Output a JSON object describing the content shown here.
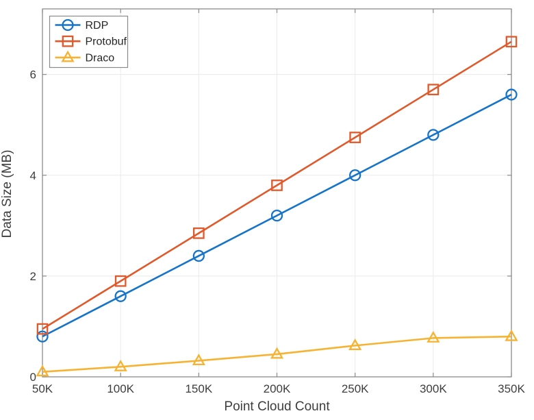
{
  "chart_data": {
    "type": "line",
    "title": "",
    "xlabel": "Point Cloud Count",
    "ylabel": "Data Size (MB)",
    "x": [
      50,
      100,
      150,
      200,
      250,
      300,
      350
    ],
    "x_tick_labels": [
      "50K",
      "100K",
      "150K",
      "200K",
      "250K",
      "300K",
      "350K"
    ],
    "xlim": [
      50,
      350
    ],
    "y_ticks": [
      0,
      2,
      4,
      6
    ],
    "ylim": [
      0,
      7.3
    ],
    "grid": true,
    "legend_position": "top-left",
    "series": [
      {
        "name": "RDP",
        "marker": "circle",
        "color": "#1573C9",
        "values": [
          0.8,
          1.6,
          2.4,
          3.2,
          4.0,
          4.8,
          5.6
        ]
      },
      {
        "name": "Protobuf",
        "marker": "square",
        "color": "#E0592A",
        "values": [
          0.95,
          1.9,
          2.85,
          3.8,
          4.75,
          5.7,
          6.65
        ]
      },
      {
        "name": "Draco",
        "marker": "triangle",
        "color": "#F6B332",
        "values": [
          0.1,
          0.2,
          0.32,
          0.45,
          0.62,
          0.77,
          0.8
        ]
      }
    ],
    "style": {
      "axis_color": "#8a8a8a",
      "grid_color": "#eaeaea",
      "text_color": "#3d3d3d",
      "legend_border_color": "#8a8a8a",
      "background": "#ffffff"
    }
  }
}
